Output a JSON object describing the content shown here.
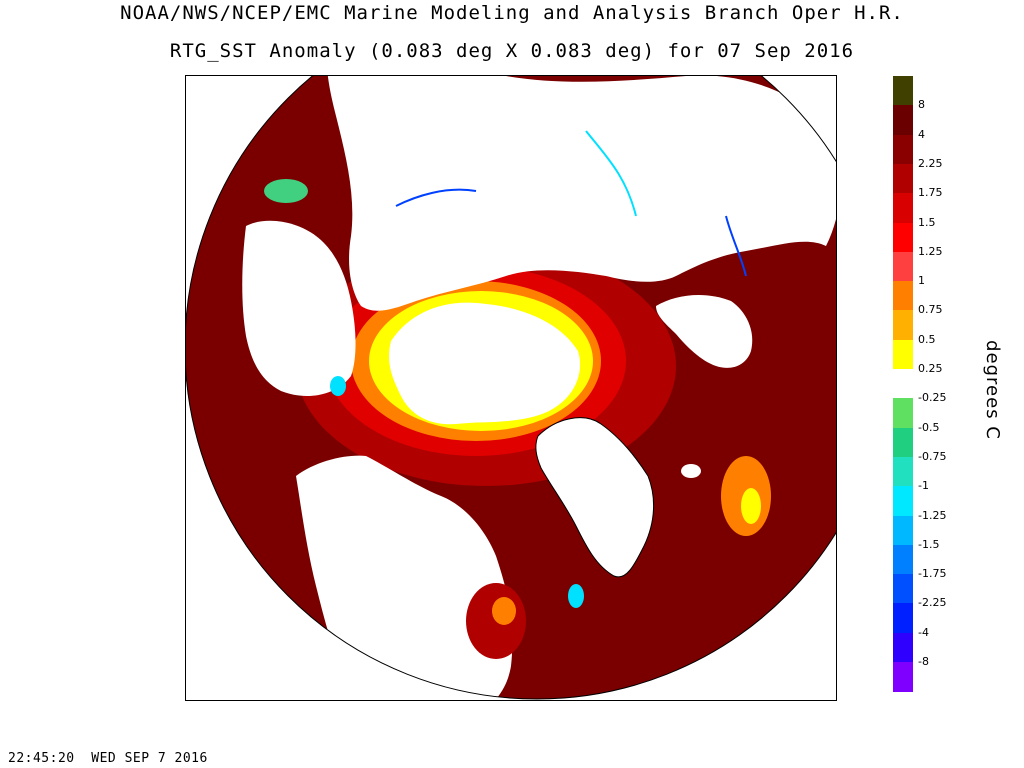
{
  "title_line1": "NOAA/NWS/NCEP/EMC Marine Modeling and Analysis Branch Oper H.R.",
  "title_line2": "RTG_SST Anomaly (0.083 deg X 0.083 deg) for 07 Sep 2016",
  "units_label": "degrees C",
  "timestamp": "22:45:20  WED SEP 7 2016",
  "colorbar": {
    "segments": [
      {
        "color": "#404000",
        "label": "8"
      },
      {
        "color": "#6b0000",
        "label": "4"
      },
      {
        "color": "#8a0000",
        "label": "2.25"
      },
      {
        "color": "#b00000",
        "label": "1.75"
      },
      {
        "color": "#d80000",
        "label": "1.5"
      },
      {
        "color": "#ff0000",
        "label": "1.25"
      },
      {
        "color": "#ff4040",
        "label": "1"
      },
      {
        "color": "#ff8000",
        "label": "0.75"
      },
      {
        "color": "#ffb000",
        "label": "0.5"
      },
      {
        "color": "#ffff00",
        "label": "0.25"
      },
      {
        "color": "#ffffff",
        "label": "-0.25"
      },
      {
        "color": "#60e060",
        "label": "-0.5"
      },
      {
        "color": "#20d080",
        "label": "-0.75"
      },
      {
        "color": "#20e0c0",
        "label": "-1"
      },
      {
        "color": "#00e8ff",
        "label": "-1.25"
      },
      {
        "color": "#00b8ff",
        "label": "-1.5"
      },
      {
        "color": "#0080ff",
        "label": "-1.75"
      },
      {
        "color": "#0050ff",
        "label": "-2.25"
      },
      {
        "color": "#0020ff",
        "label": "-4"
      },
      {
        "color": "#3000ff",
        "label": "-8"
      },
      {
        "color": "#8000ff",
        "label": ""
      }
    ]
  },
  "map_colors": {
    "warm_deep": "#7a0000",
    "warm_mid": "#b00000",
    "warm_red": "#e00000",
    "orange": "#ff8000",
    "yellow": "#ffff00",
    "cool_green": "#40d080",
    "cool_cyan": "#00e0ff",
    "cool_blue": "#0040ff",
    "ice": "#ffffff",
    "coast": "#000000"
  }
}
